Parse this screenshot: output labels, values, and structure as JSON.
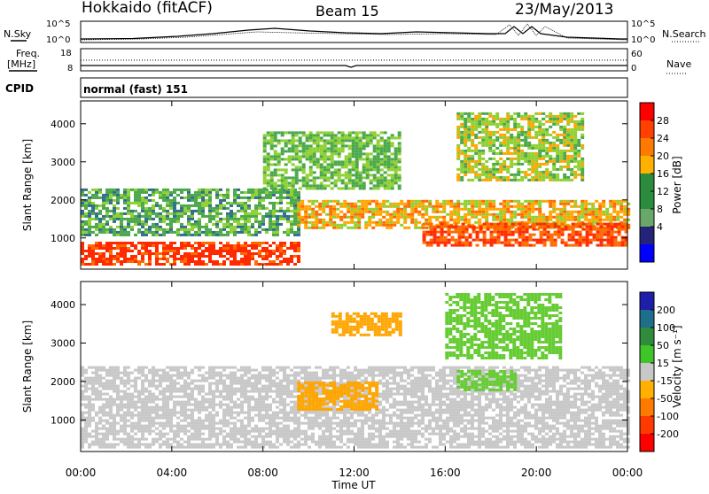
{
  "header": {
    "station": "Hokkaido (fitACF)",
    "beam": "Beam 15",
    "date": "23/May/2013"
  },
  "noise_panel": {
    "left_label": "N.Sky",
    "right_label": "N.Search",
    "tick_top": "10^5",
    "tick_bottom": "10^0"
  },
  "freq_panel": {
    "left_label_1": "Freq.",
    "left_label_2": "[MHz]",
    "right_label": "Nave",
    "left_tick_top": "18",
    "left_tick_bottom": "8",
    "right_tick_top": "60",
    "right_tick_bottom": "0"
  },
  "cpid_panel": {
    "label": "CPID",
    "value": "normal (fast) 151"
  },
  "power_panel": {
    "ylabel": "Slant Range [km]",
    "yticks": [
      "1000",
      "2000",
      "3000",
      "4000"
    ],
    "colorbar_label": "Power [dB]",
    "colorbar_ticks": [
      "28",
      "24",
      "20",
      "16",
      "12",
      "8",
      "4"
    ],
    "colorbar_colors": [
      "#ff0000",
      "#ff4000",
      "#ff7a00",
      "#ffb000",
      "#2a8c3c",
      "#2a8c3c",
      "#6aa86a",
      "#23237a",
      "#0000ff"
    ]
  },
  "velocity_panel": {
    "ylabel": "Slant Range [km]",
    "yticks": [
      "1000",
      "2000",
      "3000",
      "4000"
    ],
    "colorbar_label": "Velocity [m s⁻¹]",
    "colorbar_ticks": [
      "200",
      "100",
      "50",
      "15",
      "-15",
      "-50",
      "-100",
      "-200"
    ],
    "colorbar_colors": [
      "#1e1eaa",
      "#1f6e8c",
      "#2e8c3c",
      "#3fc52a",
      "#c8c8c8",
      "#ffb000",
      "#ff7a00",
      "#ff3a00",
      "#ff0000"
    ]
  },
  "x_axis": {
    "xlabel": "Time UT",
    "ticks": [
      "00:00",
      "04:00",
      "08:00",
      "12:00",
      "16:00",
      "20:00",
      "00:00"
    ]
  },
  "chart_data": {
    "type": "heatmap",
    "title": "Hokkaido (fitACF) Beam 15 23/May/2013",
    "xlabel": "Time UT",
    "ylabel": "Slant Range [km]",
    "xlim": [
      "00:00",
      "24:00"
    ],
    "ylim": [
      180,
      4600
    ],
    "panels": [
      {
        "name": "Power [dB]",
        "zlim": [
          0,
          30
        ],
        "features": [
          {
            "t_start": 0.0,
            "t_end": 9.5,
            "range_start": 300,
            "range_end": 900,
            "value": 28
          },
          {
            "t_start": 0.0,
            "t_end": 9.5,
            "range_start": 1100,
            "range_end": 2300,
            "value": 12
          },
          {
            "t_start": 9.5,
            "t_end": 24.0,
            "range_start": 1300,
            "range_end": 2000,
            "value": 20
          },
          {
            "t_start": 15.0,
            "t_end": 24.0,
            "range_start": 800,
            "range_end": 1400,
            "value": 26
          },
          {
            "t_start": 8.0,
            "t_end": 14.0,
            "range_start": 2300,
            "range_end": 3800,
            "value": 14
          },
          {
            "t_start": 16.5,
            "t_end": 22.0,
            "range_start": 2500,
            "range_end": 4300,
            "value": 16
          }
        ]
      },
      {
        "name": "Velocity [m s^-1]",
        "zlim": [
          -200,
          200
        ],
        "features": [
          {
            "t_start": 0.0,
            "t_end": 24.0,
            "range_start": 300,
            "range_end": 2400,
            "value": 0
          },
          {
            "t_start": 9.5,
            "t_end": 13.0,
            "range_start": 1300,
            "range_end": 2000,
            "value": -50
          },
          {
            "t_start": 11.0,
            "t_end": 14.0,
            "range_start": 3200,
            "range_end": 3800,
            "value": -50
          },
          {
            "t_start": 16.5,
            "t_end": 19.0,
            "range_start": 1800,
            "range_end": 2300,
            "value": 50
          },
          {
            "t_start": 16.0,
            "t_end": 21.0,
            "range_start": 2600,
            "range_end": 4300,
            "value": 50
          }
        ]
      }
    ]
  }
}
